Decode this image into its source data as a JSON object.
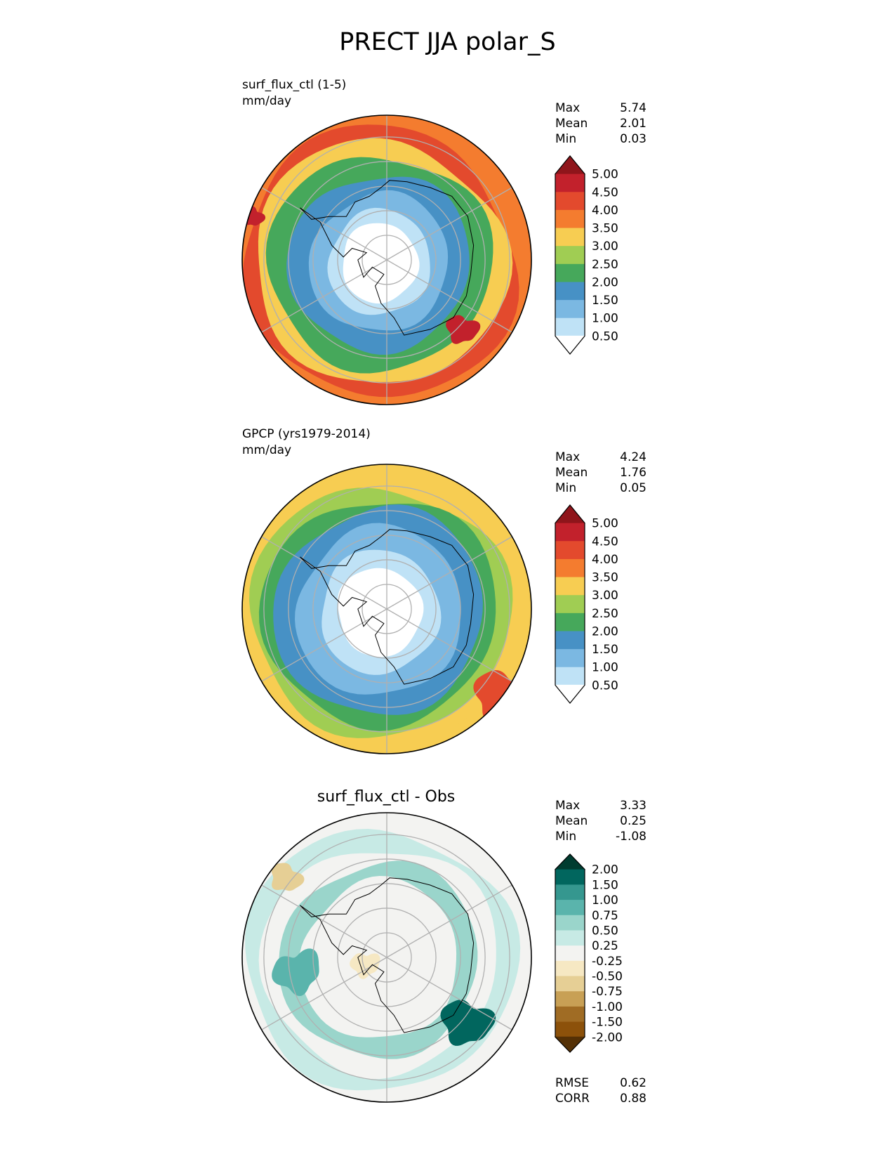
{
  "title": "PRECT JJA polar_S",
  "chart_data": [
    {
      "type": "heatmap",
      "projection": "south polar stereographic",
      "label_lines": [
        "surf_flux_ctl (1-5)",
        "mm/day"
      ],
      "stats": [
        {
          "name": "Max",
          "value": "5.74"
        },
        {
          "name": "Mean",
          "value": "2.01"
        },
        {
          "name": "Min",
          "value": "0.03"
        }
      ],
      "colorbar": {
        "extend": "both",
        "ticks": [
          "5.00",
          "4.50",
          "4.00",
          "3.50",
          "3.00",
          "2.50",
          "2.00",
          "1.50",
          "1.00",
          "0.50"
        ],
        "colors": [
          "#8f151b",
          "#c2212c",
          "#e34a2d",
          "#f47c2f",
          "#f7cd52",
          "#a0cd53",
          "#46a85b",
          "#4791c5",
          "#7bb8e2",
          "#bfe2f6",
          "#ffffff"
        ]
      },
      "field_bands": [
        {
          "level": 4.5,
          "r": 0.94,
          "color": "#e34a2d"
        },
        {
          "level": 3.5,
          "r": 0.86,
          "color": "#f7cd52"
        },
        {
          "level": 2.5,
          "r": 0.76,
          "color": "#46a85b"
        },
        {
          "level": 1.5,
          "r": 0.62,
          "color": "#4791c5"
        },
        {
          "level": 1.0,
          "r": 0.48,
          "color": "#7bb8e2"
        },
        {
          "level": 0.5,
          "r": 0.36,
          "color": "#bfe2f6"
        },
        {
          "level": 0.0,
          "r": 0.27,
          "color": "#ffffff"
        }
      ]
    },
    {
      "type": "heatmap",
      "projection": "south polar stereographic",
      "label_lines": [
        "GPCP (yrs1979-2014)",
        "mm/day"
      ],
      "stats": [
        {
          "name": "Max",
          "value": "4.24"
        },
        {
          "name": "Mean",
          "value": "1.76"
        },
        {
          "name": "Min",
          "value": "0.05"
        }
      ],
      "colorbar": {
        "extend": "both",
        "ticks": [
          "5.00",
          "4.50",
          "4.00",
          "3.50",
          "3.00",
          "2.50",
          "2.00",
          "1.50",
          "1.00",
          "0.50"
        ],
        "colors": [
          "#8f151b",
          "#c2212c",
          "#e34a2d",
          "#f47c2f",
          "#f7cd52",
          "#a0cd53",
          "#46a85b",
          "#4791c5",
          "#7bb8e2",
          "#bfe2f6",
          "#ffffff"
        ]
      },
      "field_bands": [
        {
          "level": 3.0,
          "r": 0.95,
          "color": "#f7cd52"
        },
        {
          "level": 2.5,
          "r": 0.88,
          "color": "#a0cd53"
        },
        {
          "level": 2.0,
          "r": 0.8,
          "color": "#46a85b"
        },
        {
          "level": 1.5,
          "r": 0.72,
          "color": "#4791c5"
        },
        {
          "level": 1.0,
          "r": 0.58,
          "color": "#7bb8e2"
        },
        {
          "level": 0.5,
          "r": 0.42,
          "color": "#bfe2f6"
        },
        {
          "level": 0.0,
          "r": 0.3,
          "color": "#ffffff"
        }
      ]
    },
    {
      "type": "heatmap",
      "projection": "south polar stereographic",
      "title": "surf_flux_ctl - Obs",
      "stats": [
        {
          "name": "Max",
          "value": "3.33"
        },
        {
          "name": "Mean",
          "value": "0.25"
        },
        {
          "name": "Min",
          "value": "-1.08"
        }
      ],
      "colorbar": {
        "extend": "both",
        "ticks": [
          "2.00",
          "1.50",
          "1.00",
          "0.75",
          "0.50",
          "0.25",
          "-0.25",
          "-0.50",
          "-0.75",
          "-1.00",
          "-1.50",
          "-2.00"
        ],
        "colors": [
          "#003c30",
          "#01665e",
          "#35978f",
          "#5ab4ac",
          "#9ad5cb",
          "#c7eae5",
          "#f3f3f1",
          "#f6e8c3",
          "#e6cf95",
          "#c8a055",
          "#a06c24",
          "#8c510a",
          "#543005"
        ]
      },
      "field_bands": [
        {
          "level": 0.5,
          "r": 0.92,
          "color": "#c7eae5"
        },
        {
          "level": 0.25,
          "r": 0.8,
          "color": "#f3f3f1"
        },
        {
          "level": 0.5,
          "r": 0.68,
          "color": "#9ad5cb"
        },
        {
          "level": 0.25,
          "r": 0.55,
          "color": "#f3f3f1"
        }
      ],
      "bottom_stats": [
        {
          "name": "RMSE",
          "value": "0.62"
        },
        {
          "name": "CORR",
          "value": "0.88"
        }
      ]
    }
  ]
}
